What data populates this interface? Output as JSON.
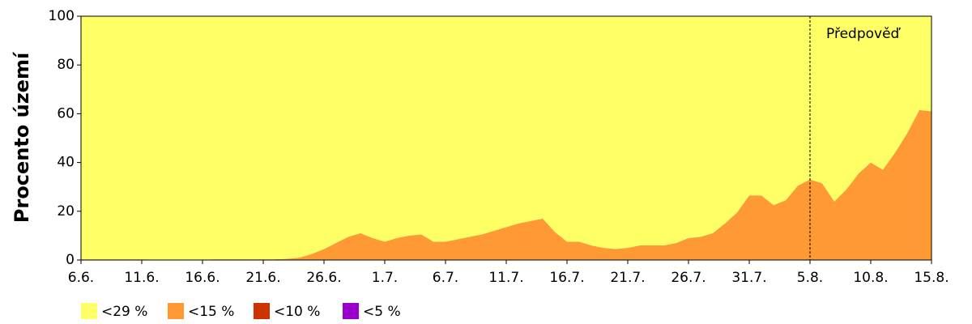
{
  "chart_data": {
    "type": "stacked_area",
    "ylabel": "Procento území",
    "categories": [
      "6.6.",
      null,
      null,
      null,
      null,
      "11.6.",
      null,
      null,
      null,
      null,
      "16.6.",
      null,
      null,
      null,
      null,
      "21.6.",
      null,
      null,
      null,
      null,
      "26.6.",
      null,
      null,
      null,
      null,
      "1.7.",
      null,
      null,
      null,
      null,
      "6.7.",
      null,
      null,
      null,
      null,
      "11.7.",
      null,
      null,
      null,
      null,
      "16.7.",
      null,
      null,
      null,
      null,
      "21.7.",
      null,
      null,
      null,
      null,
      "26.7.",
      null,
      null,
      null,
      null,
      "31.7.",
      null,
      null,
      null,
      null,
      "5.8.",
      null,
      null,
      null,
      null,
      "10.8.",
      null,
      null,
      null,
      null,
      "15.8."
    ],
    "series": [
      {
        "name": "<29 %",
        "color": "#ffff66",
        "values": [
          99.7,
          99.7,
          99.7,
          99.7,
          99.7,
          99.7,
          99.8,
          99.8,
          99.8,
          99.8,
          99.8,
          99.7,
          99.7,
          99.7,
          99.7,
          99.7,
          99.7,
          99.5,
          99,
          97.5,
          95.5,
          93,
          90.5,
          89,
          91,
          92.5,
          91,
          90,
          89.5,
          92.5,
          92.5,
          91.5,
          90.5,
          89.5,
          88,
          86.5,
          85,
          84,
          83,
          88.5,
          92.5,
          92.5,
          94,
          95,
          95.5,
          95,
          94,
          94,
          94,
          93,
          91,
          90.5,
          89,
          85,
          80.5,
          73.5,
          73.5,
          77.5,
          75.5,
          69.5,
          67,
          68.5,
          76,
          71,
          64.5,
          60,
          63,
          56,
          48,
          38.5,
          39
        ]
      },
      {
        "name": "<15 %",
        "color": "#ff9933",
        "values": [
          0.3,
          0.3,
          0.3,
          0.3,
          0.3,
          0.3,
          0.2,
          0.2,
          0.2,
          0.2,
          0.2,
          0.3,
          0.3,
          0.3,
          0.3,
          0.3,
          0.3,
          0.5,
          1,
          2.5,
          4.5,
          7,
          9.5,
          11,
          9,
          7.5,
          9,
          10,
          10.5,
          7.5,
          7.5,
          8.5,
          9.5,
          10.5,
          12,
          13.5,
          15,
          16,
          17,
          11.5,
          7.5,
          7.5,
          6,
          5,
          4.5,
          5,
          6,
          6,
          6,
          7,
          9,
          9.5,
          11,
          15,
          19.5,
          26.5,
          26.5,
          22.5,
          24.5,
          30.5,
          33,
          31.5,
          24,
          29,
          35.5,
          40,
          37,
          44,
          52,
          61.5,
          61
        ]
      },
      {
        "name": "<10 %",
        "color": "#cc3300",
        "values": [
          0,
          0,
          0,
          0,
          0,
          0,
          0,
          0,
          0,
          0,
          0,
          0,
          0,
          0,
          0,
          0,
          0,
          0,
          0,
          0,
          0,
          0,
          0,
          0,
          0,
          0,
          0,
          0,
          0,
          0,
          0,
          0,
          0,
          0,
          0,
          0,
          0,
          0,
          0,
          0,
          0,
          0,
          0,
          0,
          0,
          0,
          0,
          0,
          0,
          0,
          0,
          0,
          0,
          0,
          0,
          0,
          0,
          0,
          0,
          0,
          0,
          0,
          0,
          0,
          0,
          0,
          0,
          0,
          0,
          0,
          0
        ]
      },
      {
        "name": "<5 %",
        "color": "#9900cc",
        "values": [
          0,
          0,
          0,
          0,
          0,
          0,
          0,
          0,
          0,
          0,
          0,
          0,
          0,
          0,
          0,
          0,
          0,
          0,
          0,
          0,
          0,
          0,
          0,
          0,
          0,
          0,
          0,
          0,
          0,
          0,
          0,
          0,
          0,
          0,
          0,
          0,
          0,
          0,
          0,
          0,
          0,
          0,
          0,
          0,
          0,
          0,
          0,
          0,
          0,
          0,
          0,
          0,
          0,
          0,
          0,
          0,
          0,
          0,
          0,
          0,
          0,
          0,
          0,
          0,
          0,
          0,
          0,
          0,
          0,
          0,
          0
        ]
      }
    ],
    "ylim": [
      0,
      100
    ],
    "yticks": [
      0,
      20,
      40,
      60,
      80,
      100
    ],
    "annotation": {
      "text": "Předpověď",
      "x": "5.8."
    },
    "legend": "bottom-left"
  }
}
